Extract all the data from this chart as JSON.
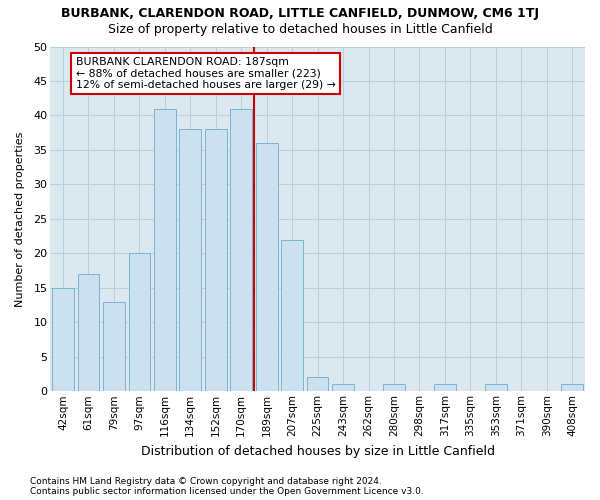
{
  "title": "BURBANK, CLARENDON ROAD, LITTLE CANFIELD, DUNMOW, CM6 1TJ",
  "subtitle": "Size of property relative to detached houses in Little Canfield",
  "xlabel": "Distribution of detached houses by size in Little Canfield",
  "ylabel": "Number of detached properties",
  "bar_labels": [
    "42sqm",
    "61sqm",
    "79sqm",
    "97sqm",
    "116sqm",
    "134sqm",
    "152sqm",
    "170sqm",
    "189sqm",
    "207sqm",
    "225sqm",
    "243sqm",
    "262sqm",
    "280sqm",
    "298sqm",
    "317sqm",
    "335sqm",
    "353sqm",
    "371sqm",
    "390sqm",
    "408sqm"
  ],
  "bar_values": [
    15,
    17,
    13,
    20,
    41,
    38,
    38,
    41,
    36,
    22,
    2,
    1,
    0,
    1,
    0,
    1,
    0,
    1,
    0,
    0,
    1
  ],
  "bar_color": "#cce0f0",
  "bar_edgecolor": "#7ab4d4",
  "grid_color": "#b8cfe0",
  "annotation_text": "BURBANK CLARENDON ROAD: 187sqm\n← 88% of detached houses are smaller (223)\n12% of semi-detached houses are larger (29) →",
  "annotation_box_facecolor": "#ffffff",
  "annotation_box_edgecolor": "#cc0000",
  "ref_line_bar_index": 8,
  "ylim": [
    0,
    50
  ],
  "yticks": [
    0,
    5,
    10,
    15,
    20,
    25,
    30,
    35,
    40,
    45,
    50
  ],
  "footer1": "Contains HM Land Registry data © Crown copyright and database right 2024.",
  "footer2": "Contains public sector information licensed under the Open Government Licence v3.0.",
  "bg_color": "#ffffff",
  "plot_bg_color": "#dce8f0"
}
